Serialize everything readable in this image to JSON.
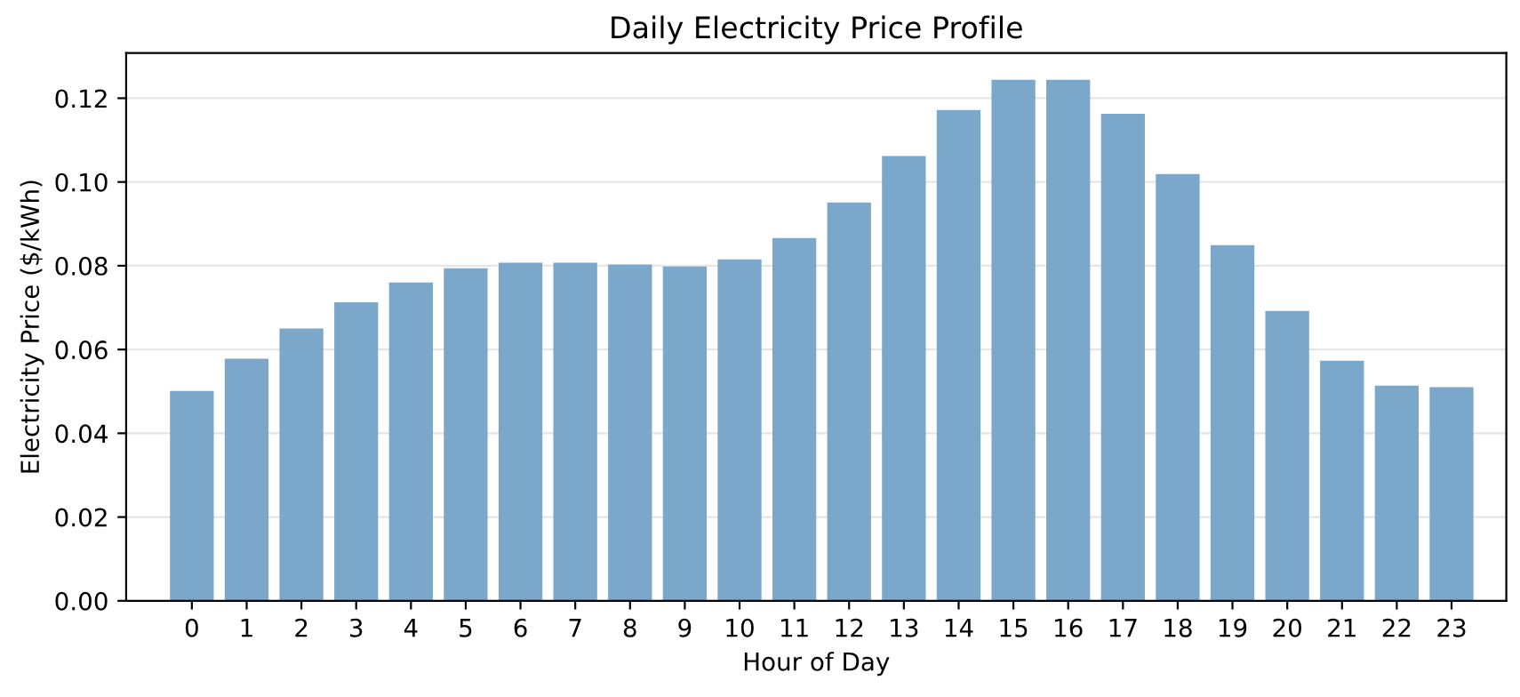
{
  "chart_data": {
    "type": "bar",
    "title": "Daily Electricity Price Profile",
    "xlabel": "Hour of Day",
    "ylabel": "Electricity Price ($/kWh)",
    "categories": [
      "0",
      "1",
      "2",
      "3",
      "4",
      "5",
      "6",
      "7",
      "8",
      "9",
      "10",
      "11",
      "12",
      "13",
      "14",
      "15",
      "16",
      "17",
      "18",
      "19",
      "20",
      "21",
      "22",
      "23"
    ],
    "values": [
      0.0501,
      0.0578,
      0.065,
      0.0713,
      0.076,
      0.0794,
      0.0807,
      0.0807,
      0.0803,
      0.0798,
      0.0815,
      0.0866,
      0.0951,
      0.1062,
      0.1172,
      0.1244,
      0.1244,
      0.1163,
      0.1019,
      0.0849,
      0.0692,
      0.0573,
      0.0514,
      0.051
    ],
    "color": "#7ba7cb",
    "ylim": [
      0,
      0.1308
    ],
    "yticks": [
      {
        "value": 0,
        "label": "0.00"
      },
      {
        "value": 0.02,
        "label": "0.02"
      },
      {
        "value": 0.04,
        "label": "0.04"
      },
      {
        "value": 0.06,
        "label": "0.06"
      },
      {
        "value": 0.08,
        "label": "0.08"
      },
      {
        "value": 0.1,
        "label": "0.10"
      },
      {
        "value": 0.12,
        "label": "0.12"
      }
    ],
    "grid": "y",
    "legend": false
  }
}
